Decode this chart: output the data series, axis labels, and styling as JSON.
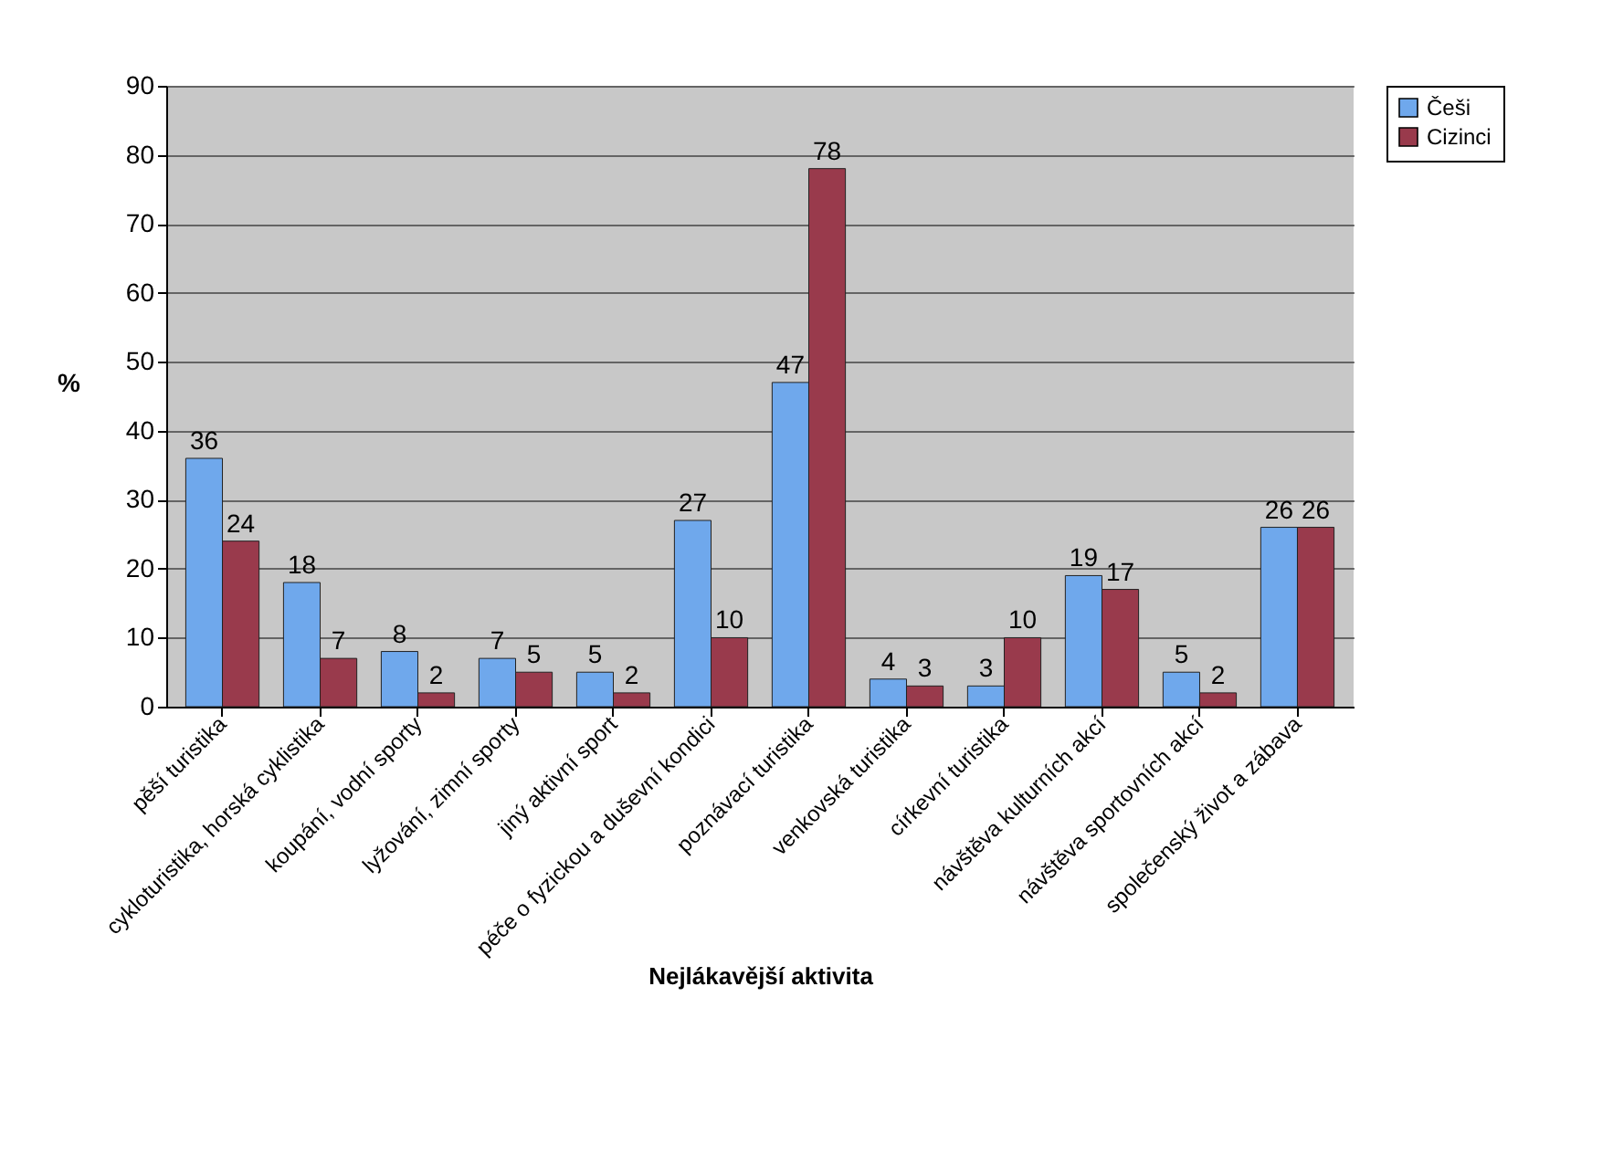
{
  "chart_data": {
    "type": "bar",
    "xlabel": "Nejlákavější aktivita",
    "ylabel": "%",
    "categories": [
      "pěší turistika",
      "cykloturistika, horská cyklistika",
      "koupání, vodní sporty",
      "lyžování, zimní sporty",
      "jiný aktivní sport",
      "péče o fyzickou a duševní kondici",
      "poznávací turistika",
      "venkovská turistika",
      "církevní turistika",
      "návštěva kulturních akcí",
      "návštěva sportovních akcí",
      "společenský život a zábava"
    ],
    "series": [
      {
        "name": "Češi",
        "color": "#6fa8ec",
        "values": [
          36,
          18,
          8,
          7,
          5,
          27,
          47,
          4,
          3,
          19,
          5,
          26
        ]
      },
      {
        "name": "Cizinci",
        "color": "#993a4c",
        "values": [
          24,
          7,
          2,
          5,
          2,
          10,
          78,
          3,
          10,
          17,
          2,
          26
        ]
      }
    ],
    "ylim": [
      0,
      90
    ],
    "yticks": [
      0,
      10,
      20,
      30,
      40,
      50,
      60,
      70,
      80,
      90
    ],
    "grid": "y",
    "legend": "right",
    "data_labels": true
  }
}
